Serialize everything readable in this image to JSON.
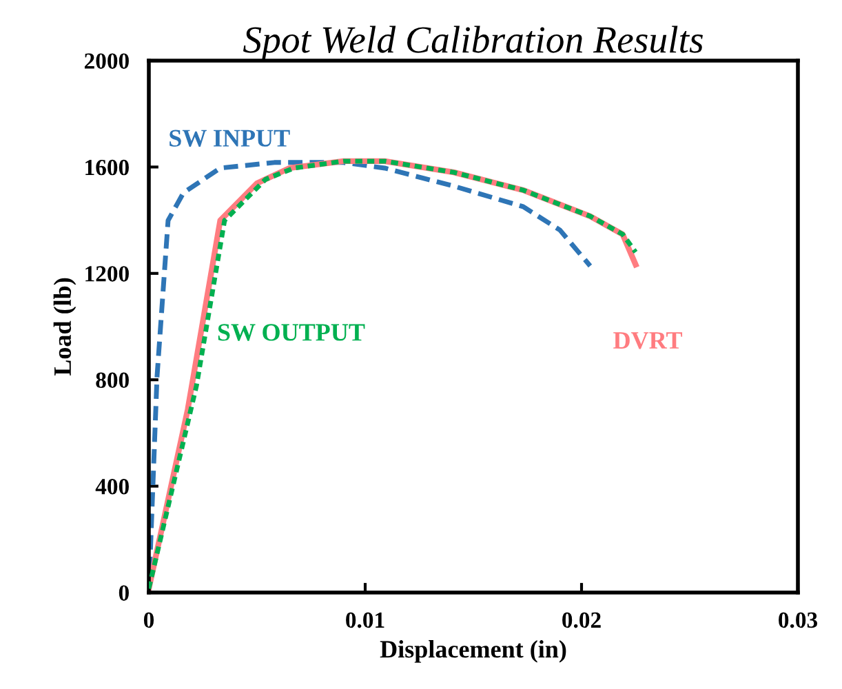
{
  "chart_data": {
    "type": "line",
    "title": "Spot Weld Calibration Results",
    "xlabel": "Displacement (in)",
    "ylabel": "Load (lb)",
    "xlim": [
      0,
      0.03
    ],
    "xticks": [
      0,
      0.01,
      0.02,
      0.03
    ],
    "ylim": [
      0,
      2000
    ],
    "yticks": [
      0,
      400,
      800,
      1200,
      1600,
      2000
    ],
    "grid": false,
    "legend": false,
    "marker": "none",
    "series": [
      {
        "name": "SW INPUT",
        "color": "#2e75b6",
        "line_style": "dashed",
        "x": [
          0,
          0.00038,
          0.00089,
          0.0016,
          0.0033,
          0.0058,
          0.009,
          0.0109,
          0.0141,
          0.0173,
          0.019,
          0.0204
        ],
        "values": [
          0,
          813,
          1399,
          1503,
          1596,
          1617,
          1617,
          1596,
          1528,
          1451,
          1363,
          1228
        ]
      },
      {
        "name": "DVRT",
        "color": "#ff7c80",
        "line_style": "solid",
        "x": [
          0,
          0.0018,
          0.0033,
          0.005,
          0.0065,
          0.009,
          0.0109,
          0.0141,
          0.0173,
          0.0204,
          0.0219,
          0.0225
        ],
        "values": [
          15,
          689,
          1399,
          1539,
          1596,
          1622,
          1622,
          1580,
          1513,
          1415,
          1347,
          1233
        ]
      },
      {
        "name": "SW OUTPUT",
        "color": "#00b050",
        "line_style": "dotted",
        "x": [
          0,
          0.0022,
          0.0035,
          0.0054,
          0.0067,
          0.009,
          0.0109,
          0.0141,
          0.0173,
          0.0204,
          0.0219,
          0.0225
        ],
        "values": [
          15,
          777,
          1399,
          1554,
          1596,
          1622,
          1622,
          1580,
          1513,
          1415,
          1347,
          1280
        ]
      }
    ]
  }
}
